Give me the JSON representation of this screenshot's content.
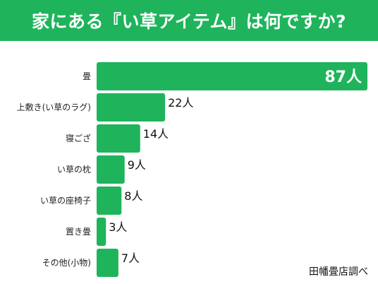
{
  "colors": {
    "accent": "#1fb45c",
    "bar": "#1fb45c",
    "text": "#111111",
    "background": "#ffffff"
  },
  "chart_data": {
    "type": "bar",
    "orientation": "horizontal",
    "title": "家にある『い草アイテム』は何ですか?",
    "categories": [
      "畳",
      "上敷き(い草のラグ)",
      "寝ござ",
      "い草の枕",
      "い草の座椅子",
      "置き畳",
      "その他(小物)"
    ],
    "values": [
      87,
      22,
      14,
      9,
      8,
      3,
      7
    ],
    "value_labels": [
      "87人",
      "22人",
      "14人",
      "9人",
      "8人",
      "3人",
      "7人"
    ],
    "xlim": [
      0,
      87
    ],
    "grid": false,
    "legend": "none"
  },
  "footer": {
    "source": "田幡畳店調べ"
  }
}
